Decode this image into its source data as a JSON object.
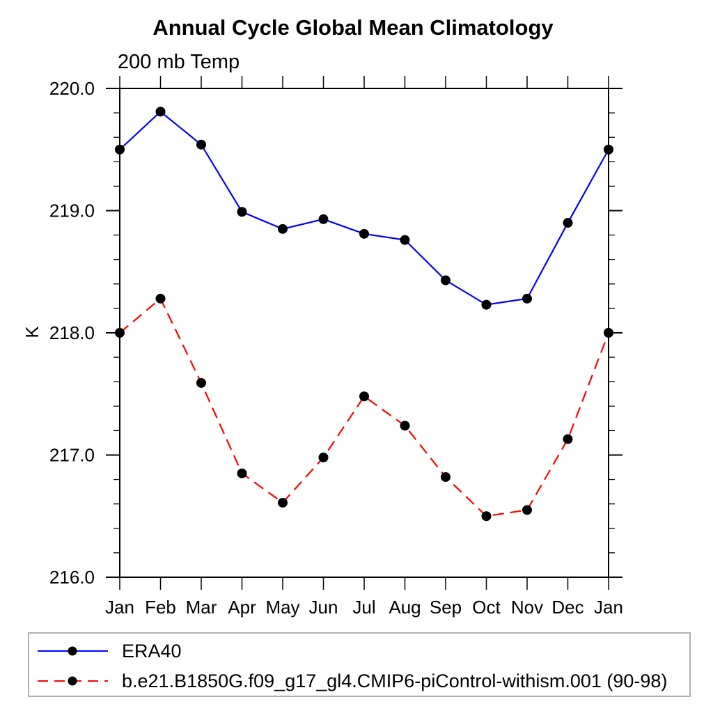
{
  "chart_data": {
    "type": "line",
    "title": "Annual Cycle Global Mean Climatology",
    "subtitle": "200 mb Temp",
    "ylabel": "K",
    "xlabel": "",
    "categories": [
      "Jan",
      "Feb",
      "Mar",
      "Apr",
      "May",
      "Jun",
      "Jul",
      "Aug",
      "Sep",
      "Oct",
      "Nov",
      "Dec",
      "Jan"
    ],
    "ylim": [
      216.0,
      220.0
    ],
    "ytick_labels": [
      "216.0",
      "217.0",
      "218.0",
      "219.0",
      "220.0"
    ],
    "ytick_values": [
      216.0,
      217.0,
      218.0,
      219.0,
      220.0
    ],
    "y_minor_step": 0.2,
    "grid": false,
    "legend_position": "bottom-left-box",
    "frame_color": "#000000",
    "marker": {
      "shape": "circle",
      "color": "#000000",
      "radius": 7
    },
    "series": [
      {
        "name": "ERA40",
        "color": "#0000ff",
        "style": "solid",
        "values": [
          219.5,
          219.81,
          219.54,
          218.99,
          218.85,
          218.93,
          218.81,
          218.76,
          218.43,
          218.23,
          218.28,
          218.9,
          219.5
        ]
      },
      {
        "name": "b.e21.B1850G.f09_g17_gl4.CMIP6-piControl-withism.001 (90-98)",
        "color": "#ff0000",
        "style": "dashed",
        "values": [
          218.0,
          218.28,
          217.59,
          216.85,
          216.61,
          216.98,
          217.48,
          217.24,
          216.82,
          216.5,
          216.55,
          217.13,
          218.0
        ]
      }
    ]
  }
}
